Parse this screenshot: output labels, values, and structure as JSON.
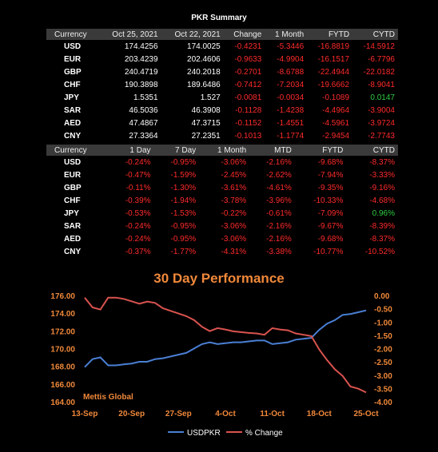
{
  "summary_title": "PKR Summary",
  "table1": {
    "headers": [
      "Currency",
      "Oct 25, 2021",
      "Oct 22, 2021",
      "Change",
      "1 Month",
      "FYTD",
      "CYTD"
    ],
    "rows": [
      [
        "USD",
        "174.4256",
        "174.0025",
        "-0.4231",
        "-5.3446",
        "-16.8819",
        "-14.5912"
      ],
      [
        "EUR",
        "203.4239",
        "202.4606",
        "-0.9633",
        "-4.9904",
        "-16.1517",
        "-6.7796"
      ],
      [
        "GBP",
        "240.4719",
        "240.2018",
        "-0.2701",
        "-8.6788",
        "-22.4944",
        "-22.0182"
      ],
      [
        "CHF",
        "190.3898",
        "189.6486",
        "-0.7412",
        "-7.2034",
        "-19.6662",
        "-8.9041"
      ],
      [
        "JPY",
        "1.5351",
        "1.527",
        "-0.0081",
        "-0.0034",
        "-0.1089",
        "0.0147"
      ],
      [
        "SAR",
        "46.5036",
        "46.3908",
        "-0.1128",
        "-1.4238",
        "-4.4964",
        "-3.9004"
      ],
      [
        "AED",
        "47.4867",
        "47.3715",
        "-0.1152",
        "-1.4551",
        "-4.5961",
        "-3.9724"
      ],
      [
        "CNY",
        "27.3364",
        "27.2351",
        "-0.1013",
        "-1.1774",
        "-2.9454",
        "-2.7743"
      ]
    ]
  },
  "table2": {
    "headers": [
      "Currency",
      "1 Day",
      "7 Day",
      "1 Month",
      "MTD",
      "FYTD",
      "CYTD"
    ],
    "rows": [
      [
        "USD",
        "-0.24%",
        "-0.95%",
        "-3.06%",
        "-2.16%",
        "-9.68%",
        "-8.37%"
      ],
      [
        "EUR",
        "-0.47%",
        "-1.59%",
        "-2.45%",
        "-2.62%",
        "-7.94%",
        "-3.33%"
      ],
      [
        "GBP",
        "-0.11%",
        "-1.30%",
        "-3.61%",
        "-4.61%",
        "-9.35%",
        "-9.16%"
      ],
      [
        "CHF",
        "-0.39%",
        "-1.94%",
        "-3.78%",
        "-3.96%",
        "-10.33%",
        "-4.68%"
      ],
      [
        "JPY",
        "-0.53%",
        "-1.53%",
        "-0.22%",
        "-0.61%",
        "-7.09%",
        "0.96%"
      ],
      [
        "SAR",
        "-0.24%",
        "-0.95%",
        "-3.06%",
        "-2.16%",
        "-9.67%",
        "-8.39%"
      ],
      [
        "AED",
        "-0.24%",
        "-0.95%",
        "-3.06%",
        "-2.16%",
        "-9.68%",
        "-8.37%"
      ],
      [
        "CNY",
        "-0.37%",
        "-1.77%",
        "-4.31%",
        "-3.38%",
        "-10.77%",
        "-10.52%"
      ]
    ]
  },
  "colors": {
    "negative": "#ff2a2a",
    "positive": "#2ecc40",
    "accent": "#f0883a",
    "usd_line": "#4a7fd4",
    "pct_line": "#d9534f"
  },
  "chart_data": {
    "type": "line",
    "title": "30 Day Performance",
    "watermark": "Mettis Global",
    "x_ticks": [
      "13-Sep",
      "20-Sep",
      "27-Sep",
      "4-Oct",
      "11-Oct",
      "18-Oct",
      "25-Oct"
    ],
    "left_axis": {
      "ylim": [
        164,
        176
      ],
      "ticks": [
        "176.00",
        "174.00",
        "172.00",
        "170.00",
        "168.00",
        "166.00",
        "164.00"
      ]
    },
    "right_axis": {
      "ylim": [
        -4.0,
        0.0
      ],
      "ticks": [
        "0.00",
        "-0.50",
        "-1.00",
        "-1.50",
        "-2.00",
        "-2.50",
        "-3.00",
        "-3.50",
        "-4.00"
      ]
    },
    "series": [
      {
        "name": "USDPKR",
        "axis": "left",
        "values": [
          168.0,
          168.9,
          169.1,
          168.2,
          168.2,
          168.3,
          168.4,
          168.6,
          168.6,
          168.9,
          169.0,
          169.2,
          169.4,
          169.6,
          170.1,
          170.6,
          170.8,
          170.6,
          170.7,
          170.8,
          170.8,
          170.9,
          171.0,
          171.0,
          170.6,
          170.7,
          170.8,
          171.1,
          171.2,
          171.3,
          172.2,
          172.9,
          173.3,
          173.9,
          174.0,
          174.2,
          174.4
        ]
      },
      {
        "name": "% Change",
        "axis": "right",
        "values": [
          -0.05,
          -0.42,
          -0.5,
          -0.05,
          -0.05,
          -0.1,
          -0.19,
          -0.28,
          -0.2,
          -0.25,
          -0.45,
          -0.55,
          -0.65,
          -0.75,
          -0.9,
          -1.15,
          -1.31,
          -1.2,
          -1.25,
          -1.32,
          -1.35,
          -1.38,
          -1.4,
          -1.45,
          -1.2,
          -1.25,
          -1.28,
          -1.4,
          -1.45,
          -1.5,
          -2.0,
          -2.4,
          -2.75,
          -3.0,
          -3.4,
          -3.48,
          -3.62
        ]
      }
    ]
  }
}
